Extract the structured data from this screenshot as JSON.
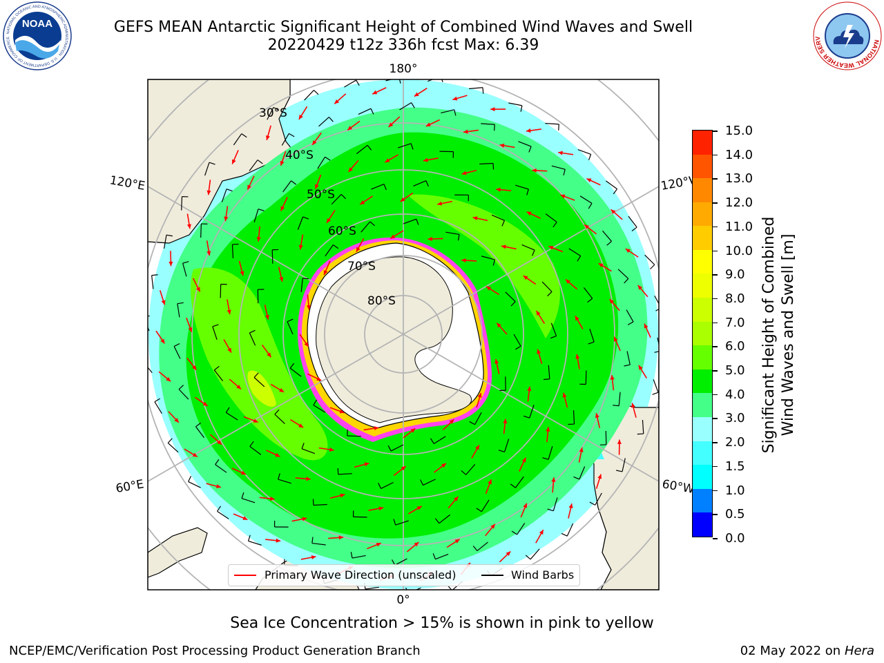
{
  "header": {
    "title_line1": "GEFS MEAN Antarctic Significant Height of Combined Wind Waves and Swell",
    "title_line2": "20220429 t12z 336h fcst   Max: 6.39"
  },
  "logos": {
    "noaa_logo_text": "NOAA",
    "noaa_ring_text": "NATIONAL OCEANIC AND ATMOSPHERIC ADMINISTRATION · U.S. DEPARTMENT OF COMMERCE",
    "nws_ring_text": "NATIONAL WEATHER SERVICE"
  },
  "map": {
    "projection": "south-polar-stereographic",
    "longitude_labels": {
      "top": "180°",
      "bottom": "0°",
      "left_upper": "120°E",
      "left_lower": "60°E",
      "right_upper": "120°W",
      "right_lower": "60°W"
    },
    "latitude_labels": [
      "30°S",
      "40°S",
      "50°S",
      "60°S",
      "70°S",
      "80°S"
    ],
    "colors": {
      "land": "#efecdc",
      "gridline": "#b4b4b4",
      "wave_arrow": "#ff0000",
      "wind_barb": "#000000",
      "sea_ice_pink": "#ff44ee",
      "sea_ice_yellow": "#ffd700"
    }
  },
  "colorbar": {
    "label_line1": "Significant Height of Combined",
    "label_line2": "Wind Waves and Swell [m]",
    "ticks": [
      "0.0",
      "0.5",
      "1.0",
      "1.5",
      "2.0",
      "3.0",
      "4.0",
      "5.0",
      "6.0",
      "7.0",
      "8.0",
      "9.0",
      "10.0",
      "11.0",
      "12.0",
      "13.0",
      "14.0",
      "15.0"
    ],
    "colors": [
      "#0000ff",
      "#0080ff",
      "#00ffff",
      "#44ffff",
      "#99ffff",
      "#44ff88",
      "#00ee00",
      "#66ff00",
      "#aaff00",
      "#ccff00",
      "#eeff00",
      "#ffff00",
      "#ffcc00",
      "#ffaa00",
      "#ff8800",
      "#ff5500",
      "#ff2200"
    ]
  },
  "legend": {
    "primary_wave_label": "Primary Wave Direction (unscaled)",
    "wind_barbs_label": "Wind Barbs"
  },
  "notes": {
    "sea_ice": "Sea Ice Concentration > 15% is shown in pink to yellow"
  },
  "footer": {
    "left": "NCEP/EMC/Verification Post Processing Product Generation Branch",
    "date": "02 May 2022 on",
    "machine": "Hera"
  }
}
